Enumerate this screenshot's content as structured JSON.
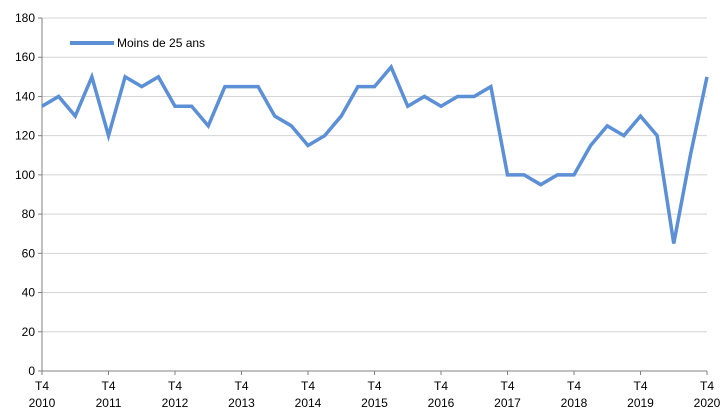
{
  "chart_data": {
    "type": "line",
    "title": "",
    "xlabel": "",
    "ylabel": "",
    "ylim": [
      0,
      180
    ],
    "y_ticks": [
      0,
      20,
      40,
      60,
      80,
      100,
      120,
      140,
      160,
      180
    ],
    "grid": true,
    "legend_position": "top-left",
    "x_tick_labels": [
      {
        "index": 0,
        "line1": "T4",
        "line2": "2010"
      },
      {
        "index": 4,
        "line1": "T4",
        "line2": "2011"
      },
      {
        "index": 8,
        "line1": "T4",
        "line2": "2012"
      },
      {
        "index": 12,
        "line1": "T4",
        "line2": "2013"
      },
      {
        "index": 16,
        "line1": "T4",
        "line2": "2014"
      },
      {
        "index": 20,
        "line1": "T4",
        "line2": "2015"
      },
      {
        "index": 24,
        "line1": "T4",
        "line2": "2016"
      },
      {
        "index": 28,
        "line1": "T4",
        "line2": "2017"
      },
      {
        "index": 32,
        "line1": "T4",
        "line2": "2018"
      },
      {
        "index": 36,
        "line1": "T4",
        "line2": "2019"
      },
      {
        "index": 40,
        "line1": "T4",
        "line2": "2020"
      }
    ],
    "series": [
      {
        "name": "Moins de 25 ans",
        "color": "#5b8fd6",
        "values": [
          135,
          140,
          130,
          150,
          120,
          150,
          145,
          150,
          135,
          135,
          125,
          145,
          145,
          145,
          130,
          125,
          115,
          120,
          130,
          145,
          145,
          155,
          135,
          140,
          135,
          140,
          140,
          145,
          100,
          100,
          95,
          100,
          100,
          115,
          125,
          120,
          130,
          120,
          65,
          110,
          150
        ]
      }
    ]
  },
  "colors": {
    "grid": "#d4d4d4",
    "axis": "#808080"
  }
}
